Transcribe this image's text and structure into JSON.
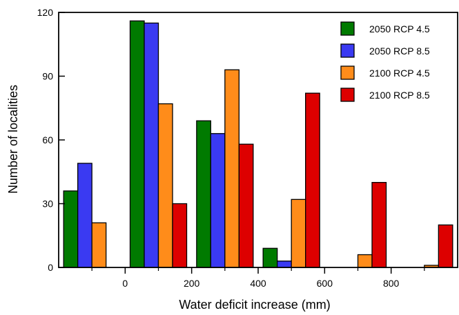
{
  "chart_data": {
    "type": "bar",
    "xlabel": "Water deficit increase (mm)",
    "ylabel": "Number of localities",
    "ylim": [
      0,
      120
    ],
    "yticks": [
      0,
      30,
      60,
      90,
      120
    ],
    "xticks": [
      0,
      200,
      400,
      600,
      800
    ],
    "xlim": [
      -200,
      1000
    ],
    "bin_centers": [
      -100,
      100,
      300,
      500,
      700,
      900
    ],
    "grid": false,
    "legend_position": "top-right",
    "series": [
      {
        "name": "2050 RCP 4.5",
        "color": "#007a00",
        "values": [
          36,
          116,
          69,
          9,
          0,
          0
        ]
      },
      {
        "name": "2050 RCP 8.5",
        "color": "#3a3af2",
        "values": [
          49,
          115,
          63,
          3,
          0,
          0
        ]
      },
      {
        "name": "2100 RCP 4.5",
        "color": "#ff8c1a",
        "values": [
          21,
          77,
          93,
          32,
          6,
          1
        ]
      },
      {
        "name": "2100 RCP 8.5",
        "color": "#dd0000",
        "values": [
          0,
          30,
          58,
          82,
          40,
          20
        ]
      }
    ]
  }
}
